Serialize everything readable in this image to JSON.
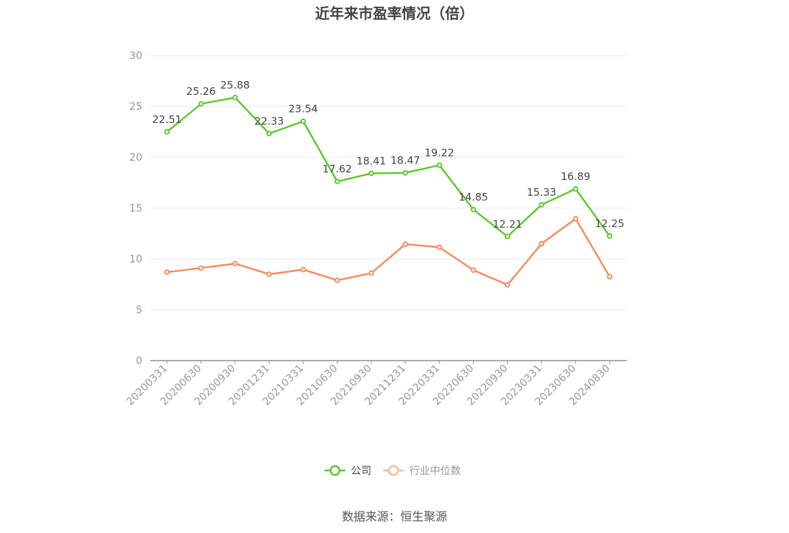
{
  "title": "近年来市盈率情况（倍）",
  "source": "数据来源：恒生聚源",
  "colors": {
    "company": "#5ac728",
    "industry": "#f5895c",
    "industry_legend": "#f9b59a",
    "grid": "#e6e8ef",
    "axis": "#8c8c99"
  },
  "chart_data": {
    "type": "line",
    "title": "近年来市盈率情况（倍）",
    "xlabel": "",
    "ylabel": "",
    "ylim": [
      0,
      30
    ],
    "y_ticks": [
      "0",
      "5",
      "10",
      "15",
      "20",
      "25",
      "30"
    ],
    "grid": true,
    "legend_position": "bottom-center",
    "categories": [
      "20200331",
      "20200630",
      "20200930",
      "20201231",
      "20210331",
      "20210630",
      "20210930",
      "20211231",
      "20220331",
      "20220630",
      "20220930",
      "20230331",
      "20230630",
      "20240830"
    ],
    "series": [
      {
        "name": "公司",
        "color": "#5ac728",
        "values": [
          22.51,
          25.26,
          25.88,
          22.33,
          23.54,
          17.62,
          18.41,
          18.47,
          19.22,
          14.85,
          12.21,
          15.33,
          16.89,
          12.25
        ],
        "labels": [
          "22.51",
          "25.26",
          "25.88",
          "22.33",
          "23.54",
          "17.62",
          "18.41",
          "18.47",
          "19.22",
          "14.85",
          "12.21",
          "15.33",
          "16.89",
          "12.25"
        ]
      },
      {
        "name": "行业中位数",
        "color": "#f5895c",
        "values": [
          8.7,
          9.1,
          9.55,
          8.5,
          8.95,
          7.9,
          8.6,
          11.45,
          11.15,
          8.9,
          7.45,
          11.5,
          13.95,
          8.25
        ]
      }
    ]
  }
}
